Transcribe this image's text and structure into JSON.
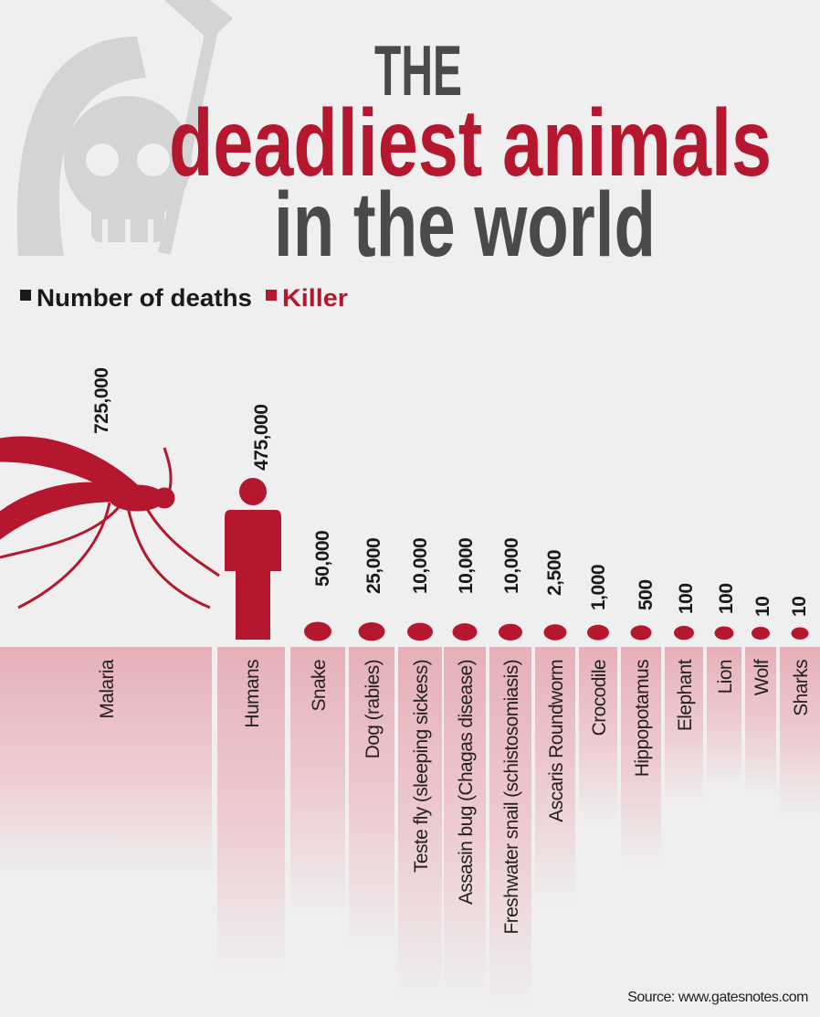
{
  "header": {
    "title_top": "THE",
    "title_main": "deadliest animals",
    "title_bottom": "in the world"
  },
  "legend": {
    "deaths": "Number of deaths",
    "killer": "Killer"
  },
  "items": [
    {
      "killer": "Malaria",
      "deaths": "725,000"
    },
    {
      "killer": "Humans",
      "deaths": "475,000"
    },
    {
      "killer": "Snake",
      "deaths": "50,000"
    },
    {
      "killer": "Dog (rabies)",
      "deaths": "25,000"
    },
    {
      "killer": "Teste fly (sleeping sickess)",
      "deaths": "10,000"
    },
    {
      "killer": "Assasin bug (Chagas disease)",
      "deaths": "10,000"
    },
    {
      "killer": "Freshwater snail (schistosomiasis)",
      "deaths": "10,000"
    },
    {
      "killer": "Ascaris Roundworm",
      "deaths": "2,500"
    },
    {
      "killer": "Crocodile",
      "deaths": "1,000"
    },
    {
      "killer": "Hippopotamus",
      "deaths": "500"
    },
    {
      "killer": "Elephant",
      "deaths": "100"
    },
    {
      "killer": "Lion",
      "deaths": "100"
    },
    {
      "killer": "Wolf",
      "deaths": "10"
    },
    {
      "killer": "Sharks",
      "deaths": "10"
    }
  ],
  "source": "Source: www.gatesnotes.com"
}
